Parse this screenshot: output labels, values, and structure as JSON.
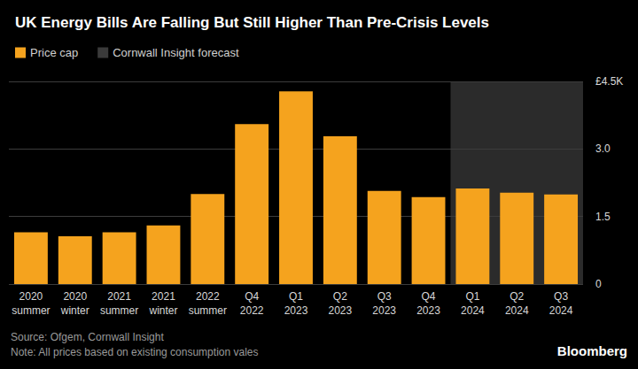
{
  "chart_data": {
    "type": "bar",
    "title": "UK Energy Bills Are Falling But Still Higher Than Pre-Crisis Levels",
    "categories": [
      "2020\nsummer",
      "2020\nwinter",
      "2021\nsummer",
      "2021\nwinter",
      "2022\nsummer",
      "Q4\n2022",
      "Q1\n2023",
      "Q2\n2023",
      "Q3\n2023",
      "Q4\n2023",
      "Q1\n2024",
      "Q2\n2024",
      "Q3\n2024"
    ],
    "series": [
      {
        "name": "Price cap",
        "color": "#f5a31e",
        "values": [
          1.15,
          1.06,
          1.15,
          1.3,
          2.0,
          3.55,
          4.28,
          3.28,
          2.07,
          1.93,
          2.12,
          2.03,
          1.99
        ]
      }
    ],
    "forecast_region": {
      "name": "Cornwall Insight forecast",
      "color": "#3a3a3a",
      "from": "Q1\n2024",
      "to": "Q3\n2024"
    },
    "ylim": [
      0,
      4.5
    ],
    "yticks": [
      0,
      1.5,
      {
        "value": 3,
        "label": "3.0"
      },
      {
        "value": 4.5,
        "label": "£4.5K"
      }
    ],
    "grid": true,
    "legend": "top-left",
    "source": "Source: Ofgem, Cornwall Insight",
    "note": "Note: All prices based on existing consumption vales",
    "logo": "Bloomberg"
  }
}
